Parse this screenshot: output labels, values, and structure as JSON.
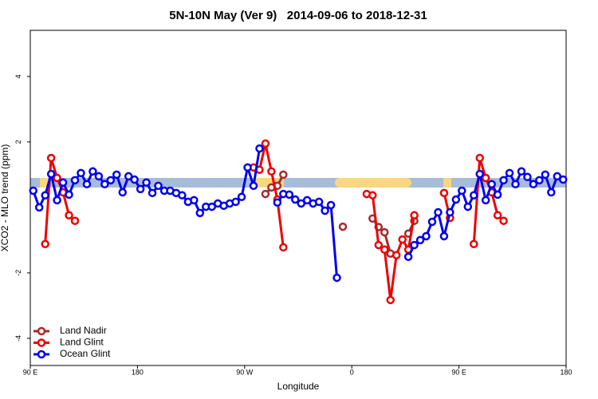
{
  "chart_data": {
    "type": "line",
    "title": "5N-10N May (Ver 9)   2014-09-06 to 2018-12-31",
    "x_label": "Longitude",
    "y_label": "XCO2 - MLO trend (ppm)",
    "xlim": [
      90,
      540
    ],
    "ylim": [
      -4.83,
      5.41
    ],
    "xticks": [
      {
        "value": 90,
        "label": "90 E"
      },
      180,
      {
        "value": 270,
        "label": "90 W"
      },
      {
        "value": 360,
        "label": "0"
      },
      {
        "value": 450,
        "label": "90 E"
      },
      {
        "value": 540,
        "label": "180"
      }
    ],
    "yticks": [
      -4,
      -2,
      2,
      4
    ],
    "legend": "bottom-left",
    "x": [
      92.5,
      97.5,
      102.5,
      107.5,
      112.5,
      117.5,
      122.5,
      127.5,
      132.5,
      137.5,
      142.5,
      147.5,
      152.5,
      157.5,
      162.5,
      167.5,
      172.5,
      177.5,
      182.5,
      187.5,
      192.5,
      197.5,
      202.5,
      207.5,
      212.5,
      217.5,
      222.5,
      227.5,
      232.5,
      237.5,
      242.5,
      247.5,
      252.5,
      257.5,
      262.5,
      267.5,
      272.5,
      277.5,
      282.5,
      287.5,
      292.5,
      297.5,
      302.5,
      307.5,
      312.5,
      317.5,
      322.5,
      327.5,
      332.5,
      337.5,
      342.5,
      347.5,
      352.5,
      357.5,
      362.5,
      367.5,
      372.5,
      377.5,
      382.5,
      387.5,
      392.5,
      397.5,
      402.5,
      407.5,
      412.5,
      417.5,
      422.5,
      427.5,
      432.5,
      437.5,
      442.5,
      447.5,
      452.5,
      457.5,
      462.5,
      467.5,
      472.5,
      477.5,
      482.5,
      487.5,
      492.5,
      497.5,
      502.5,
      507.5,
      512.5,
      517.5,
      522.5,
      527.5,
      532.5,
      537.5
    ],
    "series": [
      {
        "name": "Land Nadir",
        "color": "#a52a2a",
        "values": [
          null,
          null,
          null,
          null,
          null,
          null,
          null,
          null,
          null,
          null,
          null,
          null,
          null,
          null,
          null,
          null,
          null,
          null,
          null,
          null,
          null,
          null,
          null,
          null,
          null,
          null,
          null,
          null,
          null,
          null,
          null,
          null,
          null,
          null,
          null,
          null,
          null,
          null,
          null,
          0.41,
          0.61,
          0.66,
          1.0,
          null,
          null,
          null,
          null,
          null,
          null,
          null,
          null,
          null,
          -0.59,
          null,
          null,
          null,
          null,
          -0.34,
          -0.6,
          -0.76,
          -1.41,
          null,
          null,
          -0.8,
          -0.41,
          null,
          null,
          null,
          null,
          null,
          null,
          null,
          null,
          null,
          null,
          null,
          null,
          null,
          null,
          null,
          null,
          null,
          null,
          null,
          null,
          null,
          null,
          null,
          null,
          null
        ]
      },
      {
        "name": "Land Glint",
        "color": "#ee0000",
        "values": [
          null,
          null,
          -1.12,
          1.51,
          0.9,
          0.46,
          -0.24,
          -0.41,
          null,
          null,
          null,
          null,
          null,
          null,
          null,
          null,
          null,
          null,
          null,
          null,
          null,
          null,
          null,
          null,
          null,
          null,
          null,
          null,
          null,
          null,
          null,
          null,
          null,
          null,
          null,
          null,
          null,
          1.22,
          1.15,
          1.95,
          1.1,
          0.24,
          -1.22,
          null,
          null,
          null,
          null,
          null,
          null,
          null,
          null,
          null,
          null,
          null,
          null,
          null,
          0.41,
          0.37,
          -1.15,
          -1.29,
          -2.83,
          -1.46,
          -0.98,
          -1.29,
          -0.24,
          null,
          null,
          null,
          null,
          0.44,
          -0.32,
          null,
          null,
          null,
          -1.12,
          1.51,
          0.9,
          0.46,
          -0.24,
          -0.41,
          null,
          null,
          null,
          null,
          null,
          null,
          null,
          null,
          null,
          null
        ]
      },
      {
        "name": "Ocean Glint",
        "color": "#0000ee",
        "values": [
          0.51,
          0.0,
          0.37,
          1.02,
          0.22,
          0.76,
          0.39,
          0.83,
          1.05,
          0.71,
          1.1,
          0.95,
          0.71,
          0.83,
          1.0,
          0.46,
          0.95,
          0.85,
          0.56,
          0.76,
          0.44,
          0.66,
          0.51,
          0.51,
          0.44,
          0.37,
          0.17,
          0.22,
          -0.17,
          0.02,
          0.02,
          0.12,
          0.05,
          0.12,
          0.17,
          0.32,
          1.22,
          0.66,
          1.8,
          null,
          null,
          0.15,
          0.41,
          0.39,
          0.24,
          0.12,
          0.22,
          0.12,
          0.17,
          -0.1,
          0.07,
          -2.15,
          null,
          null,
          null,
          null,
          null,
          null,
          null,
          null,
          null,
          null,
          null,
          -1.51,
          -1.15,
          -1.0,
          -0.88,
          -0.44,
          -0.15,
          -0.88,
          -0.15,
          0.24,
          0.51,
          0.02,
          0.37,
          1.02,
          0.22,
          0.71,
          0.39,
          0.83,
          1.05,
          0.71,
          1.1,
          0.93,
          0.71,
          0.83,
          1.0,
          0.46,
          0.95,
          0.85
        ]
      }
    ]
  }
}
